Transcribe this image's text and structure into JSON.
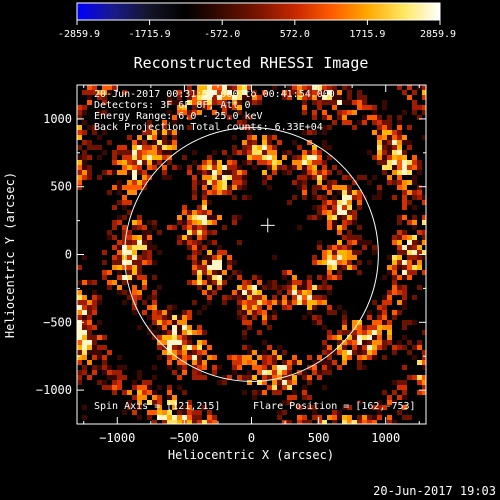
{
  "colorbar": {
    "ticks": [
      "-2859.9",
      "-1715.9",
      "-572.0",
      "572.0",
      "1715.9",
      "2859.9"
    ],
    "tick_values": [
      -2859.9,
      -1715.9,
      -572.0,
      572.0,
      1715.9,
      2859.9
    ],
    "range": [
      -2859.9,
      2859.9
    ],
    "colors": [
      "#0000ff",
      "#1a1a8a",
      "#141428",
      "#000000",
      "#3a0a00",
      "#7a1400",
      "#c62800",
      "#ff5a00",
      "#ffa800",
      "#ffe760",
      "#ffffff"
    ]
  },
  "chart_data": {
    "type": "heatmap",
    "title": "Reconstructed RHESSI Image",
    "xlabel": "Heliocentric X (arcsec)",
    "ylabel": "Heliocentric Y (arcsec)",
    "xlim": [
      -1300,
      1300
    ],
    "ylim": [
      -1250,
      1250
    ],
    "xticks": [
      -1000,
      -500,
      0,
      500,
      1000
    ],
    "xtick_labels": [
      "−1000",
      "−500",
      "0",
      "500",
      "1000"
    ],
    "yticks": [
      -1000,
      -500,
      0,
      500,
      1000
    ],
    "ytick_labels": [
      "−1000",
      "−500",
      "0",
      "500",
      "1000"
    ],
    "solar_limb_radius_arcsec": 945,
    "solar_center": [
      0,
      0
    ],
    "flare_marker": [
      121,
      215
    ],
    "annotations": {
      "time": "20-Jun-2017 00:31:54.000 to 00:41:54.000",
      "detectors": "Detectors: 3F 6F 8F, Att 0",
      "energy": "Energy Range: 6.0 - 25.0 keV",
      "method": "Back Projection    Total counts: 6.33E+04",
      "spin_axis": "Spin Axis = [121,215]",
      "flare_position": "Flare Position = [162,-753]"
    }
  },
  "footer": {
    "timestamp": "20-Jun-2017 19:03"
  }
}
